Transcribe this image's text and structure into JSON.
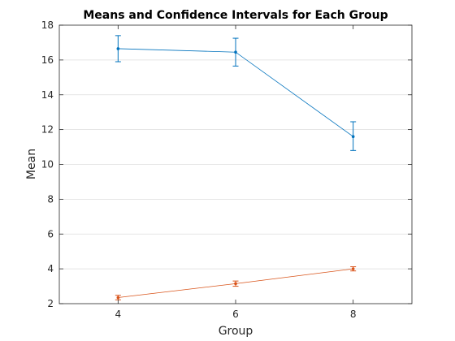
{
  "chart_data": {
    "type": "line",
    "title": "Means and Confidence Intervals for Each Group",
    "xlabel": "Group",
    "ylabel": "Mean",
    "x": [
      4,
      6,
      8
    ],
    "xticks": [
      4,
      6,
      8
    ],
    "yticks": [
      2,
      4,
      6,
      8,
      10,
      12,
      14,
      16,
      18
    ],
    "xlim": [
      3,
      9
    ],
    "ylim": [
      2,
      18
    ],
    "grid": "horizontal",
    "legend": "none",
    "series": [
      {
        "color": "#0072BD",
        "values": [
          16.65,
          16.45,
          11.6
        ],
        "ci_lower": [
          15.9,
          15.65,
          10.8
        ],
        "ci_upper": [
          17.4,
          17.25,
          12.45
        ]
      },
      {
        "color": "#D95319",
        "values": [
          2.35,
          3.15,
          4.0
        ],
        "ci_lower": [
          2.22,
          3.0,
          3.88
        ],
        "ci_upper": [
          2.48,
          3.3,
          4.12
        ]
      }
    ]
  }
}
